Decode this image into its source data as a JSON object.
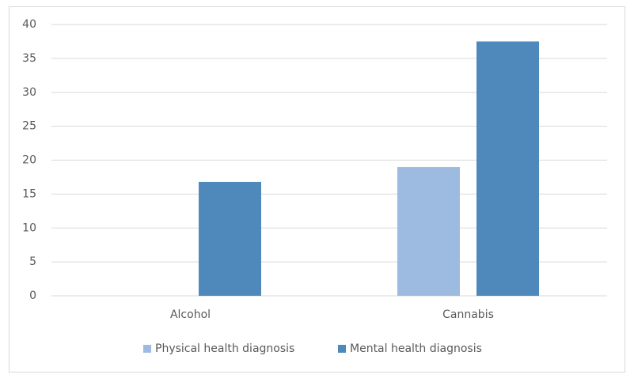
{
  "chart_data": {
    "type": "bar",
    "categories": [
      "Alcohol",
      "Cannabis"
    ],
    "series": [
      {
        "name": "Physical health diagnosis",
        "color": "#9dbbe0",
        "values": [
          0,
          19
        ]
      },
      {
        "name": "Mental health diagnosis",
        "color": "#4f88bb",
        "values": [
          16.8,
          37.5
        ]
      }
    ],
    "ylim": [
      0,
      40
    ],
    "yticks": [
      0,
      5,
      10,
      15,
      20,
      25,
      30,
      35,
      40
    ],
    "grid": true,
    "legend": "bottom"
  }
}
